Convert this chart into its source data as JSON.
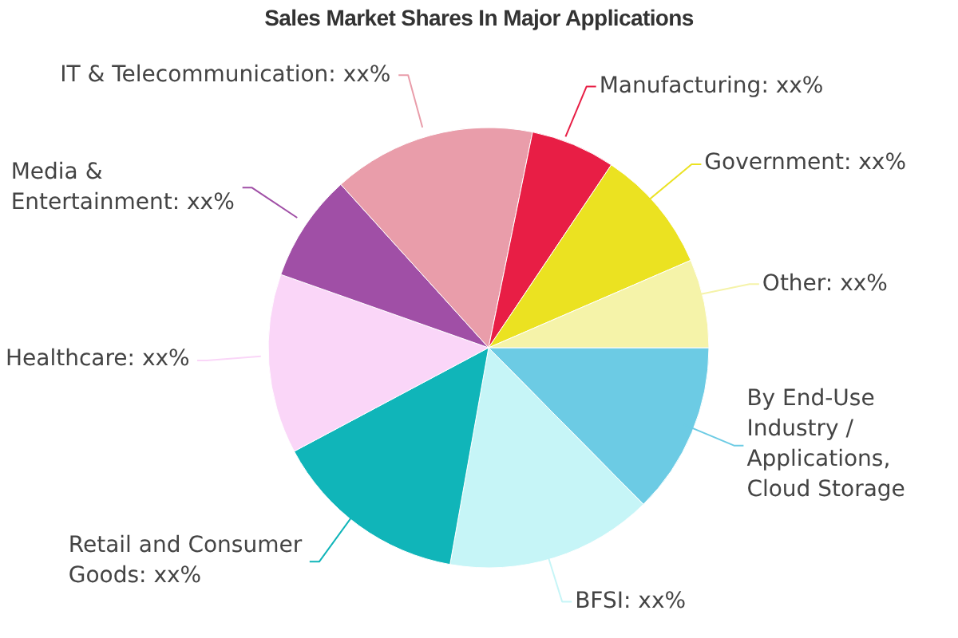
{
  "chart_data": {
    "type": "pie",
    "title": "Sales Market Shares In Major Applications",
    "categories": [
      "By End-Use Industry / Applications, Cloud Storage",
      "BFSI",
      "Retail and Consumer Goods",
      "Healthcare",
      "Media & Entertainment",
      "IT & Telecommunication",
      "Manufacturing",
      "Government",
      "Other"
    ],
    "values": [
      12.6,
      15.2,
      14.4,
      13.2,
      7.9,
      14.9,
      6.2,
      9.1,
      6.5
    ],
    "colors": [
      "#6ccbe4",
      "#c6f5f7",
      "#10b5b9",
      "#fad6f8",
      "#a04fa6",
      "#e99daa",
      "#e81e45",
      "#ebe221",
      "#f5f3a9"
    ],
    "value_labels": [
      null,
      "xx%",
      "xx%",
      "xx%",
      "xx%",
      "xx%",
      "xx%",
      "xx%",
      "xx%"
    ]
  }
}
